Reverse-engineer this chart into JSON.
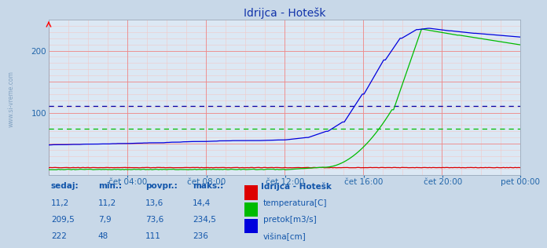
{
  "title_display": "Idrijca - Hotešk",
  "bg_color": "#c8d8e8",
  "plot_bg_color": "#dce8f4",
  "grid_red_color": "#ee8888",
  "grid_light_color": "#ddbbbb",
  "temp_color": "#dd0000",
  "pretok_color": "#00bb00",
  "visina_color": "#0000dd",
  "avg_pretok_color": "#00bb00",
  "avg_visina_color": "#0000aa",
  "pretok_avg": 73.6,
  "visina_avg": 111,
  "ylim": [
    0,
    250
  ],
  "yticks": [
    100,
    200
  ],
  "xtick_labels": [
    "čet 04:00",
    "čet 08:00",
    "čet 12:00",
    "čet 16:00",
    "čet 20:00",
    "pet 00:00"
  ],
  "table_headers": [
    "sedaj:",
    "min.:",
    "povpr.:",
    "maks.:"
  ],
  "table_rows": [
    [
      "11,2",
      "11,2",
      "13,6",
      "14,4"
    ],
    [
      "209,5",
      "7,9",
      "73,6",
      "234,5"
    ],
    [
      "222",
      "48",
      "111",
      "236"
    ]
  ],
  "legend_title": "Idrijca - Hotešk",
  "legend_items": [
    "temperatura[C]",
    "pretok[m3/s]",
    "višina[cm]"
  ],
  "legend_colors": [
    "#dd0000",
    "#00bb00",
    "#0000dd"
  ],
  "watermark": "www.si-vreme.com",
  "n_points": 288
}
